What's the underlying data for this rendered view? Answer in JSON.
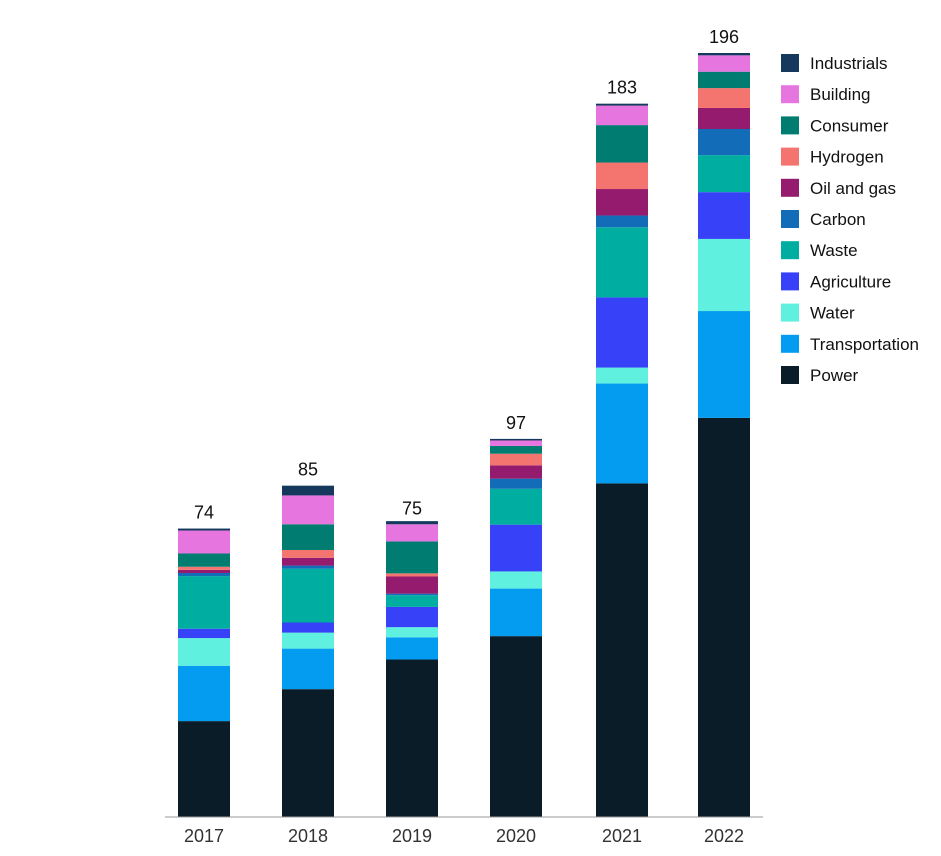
{
  "chart_data": {
    "type": "bar",
    "stacked": true,
    "categories": [
      "2017",
      "2018",
      "2019",
      "2020",
      "2021",
      "2022"
    ],
    "totals": [
      74,
      85,
      75,
      97,
      183,
      196
    ],
    "ylim": [
      0,
      196
    ],
    "grid": false,
    "legend_position": "right",
    "series": [
      {
        "name": "Power",
        "color": "#0a1c27",
        "values": [
          24.6,
          32.8,
          40.4,
          46.4,
          85.6,
          102.4
        ]
      },
      {
        "name": "Transportation",
        "color": "#039cf0",
        "values": [
          14.2,
          10.4,
          5.7,
          12.2,
          25.6,
          27.4
        ]
      },
      {
        "name": "Water",
        "color": "#5ff0e0",
        "values": [
          7.1,
          4.1,
          2.6,
          4.4,
          4.1,
          18.5
        ]
      },
      {
        "name": "Agriculture",
        "color": "#3742f8",
        "values": [
          2.4,
          2.6,
          5.2,
          12.0,
          18.0,
          12.0
        ]
      },
      {
        "name": "Waste",
        "color": "#00ada1",
        "values": [
          13.5,
          13.8,
          3.0,
          9.2,
          18.0,
          9.5
        ]
      },
      {
        "name": "Carbon",
        "color": "#126cb8",
        "values": [
          0.8,
          0.8,
          0.4,
          2.6,
          3.0,
          6.7
        ]
      },
      {
        "name": "Oil and gas",
        "color": "#951b6e",
        "values": [
          0.8,
          2.0,
          4.4,
          3.4,
          6.8,
          5.4
        ]
      },
      {
        "name": "Hydrogen",
        "color": "#f4756f",
        "values": [
          0.8,
          2.0,
          0.8,
          3.0,
          6.8,
          5.1
        ]
      },
      {
        "name": "Consumer",
        "color": "#007d70",
        "values": [
          3.4,
          6.6,
          8.2,
          2.0,
          9.6,
          4.2
        ]
      },
      {
        "name": "Building",
        "color": "#e675e0",
        "values": [
          5.9,
          7.4,
          4.4,
          1.4,
          5.0,
          4.2
        ]
      },
      {
        "name": "Industrials",
        "color": "#14395d",
        "values": [
          0.5,
          2.5,
          0.8,
          0.4,
          0.5,
          0.6
        ]
      }
    ]
  }
}
